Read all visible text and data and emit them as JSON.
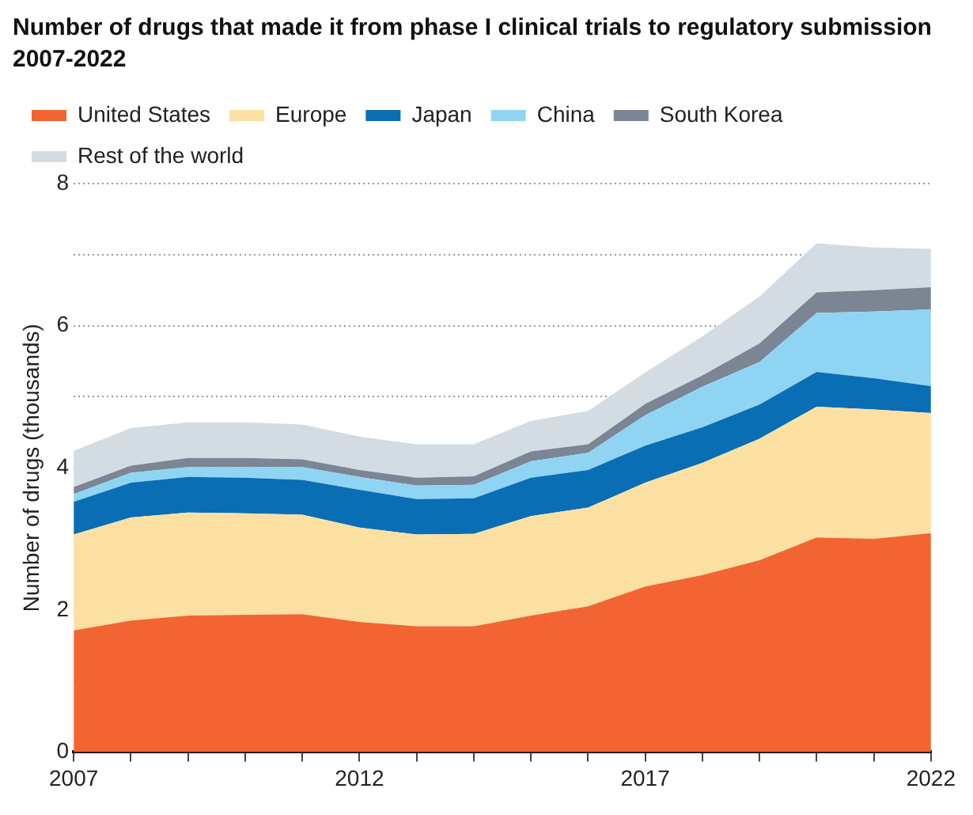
{
  "chart_data": {
    "type": "area",
    "title": "Number of drugs that made it from phase I clinical trials to regulatory submission 2007-2022",
    "ylabel": "Number of drugs (thousands)",
    "stacked": true,
    "grid": "y",
    "legend": "top left",
    "x": [
      2007,
      2008,
      2009,
      2010,
      2011,
      2012,
      2013,
      2014,
      2015,
      2016,
      2017,
      2018,
      2019,
      2020,
      2021,
      2022
    ],
    "xlim": [
      2007,
      2022
    ],
    "xticks": [
      2007,
      {
        "value": 2008,
        "label": null
      },
      {
        "value": 2009,
        "label": null
      },
      {
        "value": 2010,
        "label": null
      },
      {
        "value": 2011,
        "label": null
      },
      2012,
      {
        "value": 2013,
        "label": null
      },
      {
        "value": 2014,
        "label": null
      },
      {
        "value": 2015,
        "label": null
      },
      {
        "value": 2016,
        "label": null
      },
      2017,
      {
        "value": 2018,
        "label": null
      },
      {
        "value": 2019,
        "label": null
      },
      {
        "value": 2020,
        "label": null
      },
      {
        "value": 2021,
        "label": null
      },
      2022
    ],
    "ylim": [
      0,
      8
    ],
    "yticks": [
      0,
      {
        "value": 1,
        "label": null
      },
      2,
      {
        "value": 3,
        "label": null
      },
      4,
      {
        "value": 5,
        "label": null
      },
      6,
      {
        "value": 7,
        "label": null
      },
      8
    ],
    "series": [
      {
        "name": "United States",
        "color": "#f26532",
        "values": [
          1.71,
          1.85,
          1.92,
          1.93,
          1.94,
          1.83,
          1.77,
          1.77,
          1.92,
          2.05,
          2.33,
          2.49,
          2.7,
          3.02,
          3.0,
          3.08
        ]
      },
      {
        "name": "Europe",
        "color": "#fce0a2",
        "values": [
          1.35,
          1.45,
          1.45,
          1.43,
          1.4,
          1.33,
          1.29,
          1.3,
          1.4,
          1.39,
          1.46,
          1.58,
          1.71,
          1.84,
          1.82,
          1.69
        ]
      },
      {
        "name": "Japan",
        "color": "#0a6eb4",
        "values": [
          0.46,
          0.49,
          0.5,
          0.5,
          0.49,
          0.53,
          0.5,
          0.5,
          0.54,
          0.53,
          0.52,
          0.5,
          0.48,
          0.49,
          0.44,
          0.38
        ]
      },
      {
        "name": "China",
        "color": "#8fd5f3",
        "values": [
          0.11,
          0.14,
          0.14,
          0.15,
          0.18,
          0.18,
          0.19,
          0.19,
          0.23,
          0.24,
          0.43,
          0.57,
          0.6,
          0.83,
          0.94,
          1.08
        ]
      },
      {
        "name": "South Korea",
        "color": "#7b8594",
        "values": [
          0.1,
          0.1,
          0.13,
          0.13,
          0.11,
          0.1,
          0.11,
          0.12,
          0.14,
          0.12,
          0.16,
          0.16,
          0.26,
          0.29,
          0.3,
          0.31
        ]
      },
      {
        "name": "Rest of the world",
        "color": "#d3dce3",
        "values": [
          0.51,
          0.53,
          0.5,
          0.5,
          0.49,
          0.47,
          0.47,
          0.45,
          0.43,
          0.47,
          0.44,
          0.55,
          0.66,
          0.69,
          0.6,
          0.54
        ]
      }
    ]
  }
}
